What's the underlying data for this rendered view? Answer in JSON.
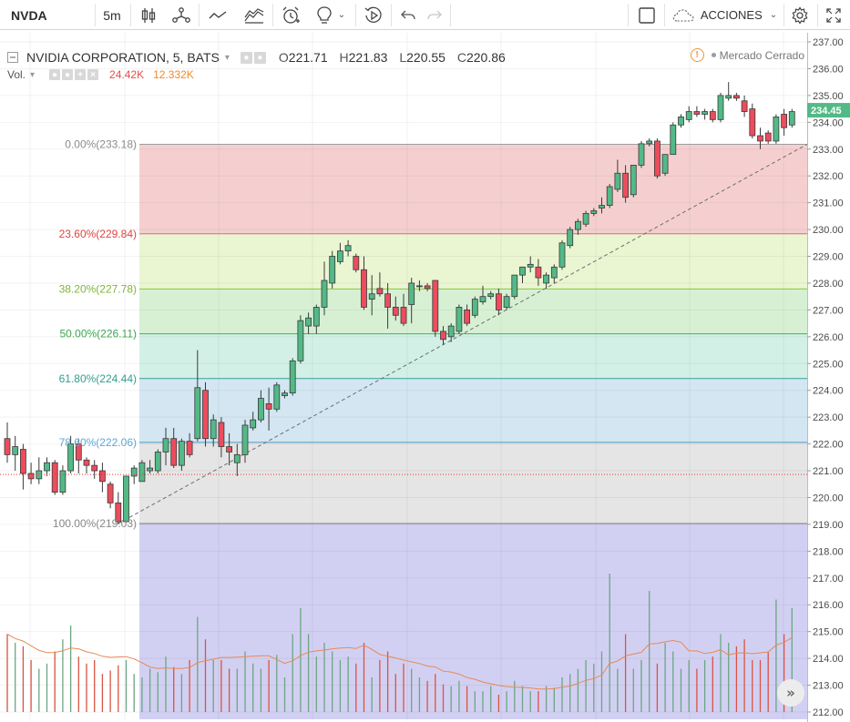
{
  "toolbar": {
    "symbol": "NVDA",
    "interval": "5m",
    "actions_label": "ACCIONES",
    "icons": [
      "bar-style-icon",
      "indicators-icon",
      "compare-icon",
      "templates-icon",
      "alert-icon",
      "ideas-icon",
      "replay-icon",
      "undo-icon",
      "redo-icon",
      "layout-square-icon",
      "cloud-icon",
      "settings-gear-icon",
      "fullscreen-icon"
    ]
  },
  "legend": {
    "title": "NVIDIA CORPORATION, 5, BATS",
    "open_label": "O",
    "open": "221.71",
    "high_label": "H",
    "high": "221.83",
    "low_label": "L",
    "low": "220.55",
    "close_label": "C",
    "close": "220.86"
  },
  "volume_legend": {
    "label": "Vol.",
    "value_a": "24.42K",
    "value_b": "12.332K"
  },
  "market_status": "Mercado Cerrado",
  "colors": {
    "up": "#53b987",
    "down": "#eb4d5c",
    "vol_up": "#6ba583",
    "vol_down": "#d75442",
    "ma": "#e58a57",
    "last_price_bg": "#53b987"
  },
  "chart_data": {
    "type": "candlestick",
    "symbol": "NVDA",
    "interval": "5",
    "price_axis": {
      "min": 212.0,
      "max": 237.0,
      "ticks": [
        "237.00",
        "236.00",
        "235.00",
        "234.00",
        "233.00",
        "232.00",
        "231.00",
        "230.00",
        "229.00",
        "228.00",
        "227.00",
        "226.00",
        "225.00",
        "224.00",
        "223.00",
        "222.00",
        "221.00",
        "220.00",
        "219.00",
        "218.00",
        "217.00",
        "216.00",
        "215.00",
        "214.00",
        "213.00",
        "212.00"
      ]
    },
    "last_price": "234.45",
    "dotted_price_line": 220.86,
    "fibonacci": {
      "from_price": 219.03,
      "to_price": 233.18,
      "levels": [
        {
          "label": "0.00%(233.18)",
          "price": 233.18,
          "line_color": "#9e9e9e",
          "fill": "#f5cfcf",
          "text_color": "#8c8c8c"
        },
        {
          "label": "23.60%(229.84)",
          "price": 229.84,
          "line_color": "#e36a6a",
          "fill": "#eaf5d2",
          "text_color": "#e0453f"
        },
        {
          "label": "38.20%(227.78)",
          "price": 227.78,
          "line_color": "#8cc63f",
          "fill": "#d7f0d4",
          "text_color": "#81b53a"
        },
        {
          "label": "50.00%(226.11)",
          "price": 226.11,
          "line_color": "#3fb55a",
          "fill": "#d2f0e6",
          "text_color": "#3aa84e"
        },
        {
          "label": "61.80%(224.44)",
          "price": 224.44,
          "line_color": "#31a392",
          "fill": "#d3e6f1",
          "text_color": "#2f9e90"
        },
        {
          "label": "78.60%(222.06)",
          "price": 222.06,
          "line_color": "#4a9ac4",
          "fill": "#e5e5e5",
          "text_color": "#5ba7d8"
        },
        {
          "label": "100.00%(219.03)",
          "price": 219.03,
          "line_color": "#808080",
          "fill": "#d2d0f2",
          "text_color": "#888888"
        }
      ]
    },
    "candles": [
      {
        "o": 222.2,
        "h": 222.8,
        "l": 221.3,
        "c": 221.6
      },
      {
        "o": 221.6,
        "h": 222.3,
        "l": 221.0,
        "c": 221.9
      },
      {
        "o": 221.8,
        "h": 222.0,
        "l": 220.3,
        "c": 220.9
      },
      {
        "o": 220.9,
        "h": 221.3,
        "l": 220.5,
        "c": 220.7
      },
      {
        "o": 220.7,
        "h": 221.5,
        "l": 220.5,
        "c": 221.0
      },
      {
        "o": 221.0,
        "h": 221.5,
        "l": 220.8,
        "c": 221.3
      },
      {
        "o": 221.3,
        "h": 221.4,
        "l": 220.1,
        "c": 220.2
      },
      {
        "o": 220.2,
        "h": 221.2,
        "l": 220.1,
        "c": 221.0
      },
      {
        "o": 221.0,
        "h": 222.3,
        "l": 220.9,
        "c": 222.0
      },
      {
        "o": 222.0,
        "h": 222.2,
        "l": 220.9,
        "c": 221.4
      },
      {
        "o": 221.4,
        "h": 221.5,
        "l": 220.9,
        "c": 221.2
      },
      {
        "o": 221.2,
        "h": 221.4,
        "l": 220.7,
        "c": 221.0
      },
      {
        "o": 221.0,
        "h": 221.3,
        "l": 220.2,
        "c": 220.6
      },
      {
        "o": 220.5,
        "h": 220.6,
        "l": 219.6,
        "c": 219.8
      },
      {
        "o": 219.8,
        "h": 220.2,
        "l": 219.0,
        "c": 219.1
      },
      {
        "o": 219.1,
        "h": 220.8,
        "l": 219.1,
        "c": 220.8
      },
      {
        "o": 220.8,
        "h": 221.2,
        "l": 220.5,
        "c": 221.1
      },
      {
        "o": 220.6,
        "h": 221.4,
        "l": 220.6,
        "c": 221.3
      },
      {
        "o": 221.0,
        "h": 221.4,
        "l": 220.9,
        "c": 221.1
      },
      {
        "o": 221.0,
        "h": 221.8,
        "l": 220.9,
        "c": 221.7
      },
      {
        "o": 221.7,
        "h": 222.6,
        "l": 221.2,
        "c": 222.2
      },
      {
        "o": 222.2,
        "h": 222.6,
        "l": 221.1,
        "c": 221.2
      },
      {
        "o": 221.2,
        "h": 222.2,
        "l": 221.0,
        "c": 222.1
      },
      {
        "o": 222.1,
        "h": 222.4,
        "l": 221.5,
        "c": 221.6
      },
      {
        "o": 222.2,
        "h": 225.5,
        "l": 222.1,
        "c": 224.1
      },
      {
        "o": 224.0,
        "h": 224.3,
        "l": 221.9,
        "c": 222.2
      },
      {
        "o": 222.2,
        "h": 223.1,
        "l": 221.9,
        "c": 222.9
      },
      {
        "o": 222.8,
        "h": 223.0,
        "l": 221.5,
        "c": 221.9
      },
      {
        "o": 221.9,
        "h": 222.4,
        "l": 221.2,
        "c": 221.7
      },
      {
        "o": 221.3,
        "h": 222.0,
        "l": 220.8,
        "c": 221.6
      },
      {
        "o": 221.6,
        "h": 222.9,
        "l": 221.3,
        "c": 222.7
      },
      {
        "o": 222.6,
        "h": 223.2,
        "l": 222.5,
        "c": 222.9
      },
      {
        "o": 222.9,
        "h": 224.0,
        "l": 222.8,
        "c": 223.7
      },
      {
        "o": 223.5,
        "h": 224.1,
        "l": 222.5,
        "c": 223.3
      },
      {
        "o": 223.3,
        "h": 224.3,
        "l": 223.2,
        "c": 224.2
      },
      {
        "o": 223.8,
        "h": 224.0,
        "l": 223.7,
        "c": 223.9
      },
      {
        "o": 223.9,
        "h": 225.2,
        "l": 223.8,
        "c": 225.1
      },
      {
        "o": 225.1,
        "h": 226.8,
        "l": 225.0,
        "c": 226.6
      },
      {
        "o": 226.4,
        "h": 226.9,
        "l": 226.1,
        "c": 226.7
      },
      {
        "o": 226.4,
        "h": 227.2,
        "l": 226.1,
        "c": 227.1
      },
      {
        "o": 227.1,
        "h": 228.8,
        "l": 226.8,
        "c": 228.1
      },
      {
        "o": 228.0,
        "h": 229.2,
        "l": 227.8,
        "c": 229.0
      },
      {
        "o": 228.8,
        "h": 229.5,
        "l": 228.7,
        "c": 229.2
      },
      {
        "o": 229.2,
        "h": 229.6,
        "l": 229.0,
        "c": 229.4
      },
      {
        "o": 229.0,
        "h": 229.1,
        "l": 228.4,
        "c": 228.5
      },
      {
        "o": 228.5,
        "h": 229.0,
        "l": 227.0,
        "c": 227.1
      },
      {
        "o": 227.4,
        "h": 228.3,
        "l": 226.8,
        "c": 227.6
      },
      {
        "o": 227.8,
        "h": 228.4,
        "l": 227.5,
        "c": 227.6
      },
      {
        "o": 227.6,
        "h": 228.0,
        "l": 226.3,
        "c": 227.1
      },
      {
        "o": 227.1,
        "h": 227.5,
        "l": 226.6,
        "c": 226.8
      },
      {
        "o": 227.1,
        "h": 227.6,
        "l": 226.4,
        "c": 226.5
      },
      {
        "o": 227.2,
        "h": 228.2,
        "l": 226.5,
        "c": 228.0
      },
      {
        "o": 227.9,
        "h": 228.1,
        "l": 227.7,
        "c": 227.9
      },
      {
        "o": 227.9,
        "h": 228.0,
        "l": 227.7,
        "c": 227.8
      },
      {
        "o": 228.1,
        "h": 228.1,
        "l": 226.0,
        "c": 226.2
      },
      {
        "o": 226.2,
        "h": 226.4,
        "l": 225.7,
        "c": 225.9
      },
      {
        "o": 226.0,
        "h": 226.5,
        "l": 225.8,
        "c": 226.4
      },
      {
        "o": 226.2,
        "h": 227.2,
        "l": 226.1,
        "c": 227.1
      },
      {
        "o": 227.0,
        "h": 227.2,
        "l": 226.4,
        "c": 226.5
      },
      {
        "o": 226.8,
        "h": 227.5,
        "l": 226.7,
        "c": 227.4
      },
      {
        "o": 227.3,
        "h": 227.9,
        "l": 227.2,
        "c": 227.5
      },
      {
        "o": 227.5,
        "h": 227.7,
        "l": 227.4,
        "c": 227.6
      },
      {
        "o": 227.6,
        "h": 227.8,
        "l": 226.8,
        "c": 227.0
      },
      {
        "o": 227.1,
        "h": 227.6,
        "l": 227.0,
        "c": 227.5
      },
      {
        "o": 227.5,
        "h": 228.3,
        "l": 227.4,
        "c": 228.3
      },
      {
        "o": 228.3,
        "h": 228.6,
        "l": 228.0,
        "c": 228.6
      },
      {
        "o": 228.6,
        "h": 229.0,
        "l": 228.4,
        "c": 228.7
      },
      {
        "o": 228.6,
        "h": 228.9,
        "l": 227.9,
        "c": 228.2
      },
      {
        "o": 228.0,
        "h": 228.4,
        "l": 227.8,
        "c": 228.3
      },
      {
        "o": 228.2,
        "h": 228.7,
        "l": 228.0,
        "c": 228.6
      },
      {
        "o": 228.6,
        "h": 229.6,
        "l": 228.5,
        "c": 229.5
      },
      {
        "o": 229.4,
        "h": 230.1,
        "l": 229.3,
        "c": 230.0
      },
      {
        "o": 230.0,
        "h": 230.4,
        "l": 229.8,
        "c": 230.3
      },
      {
        "o": 230.2,
        "h": 230.7,
        "l": 230.1,
        "c": 230.6
      },
      {
        "o": 230.6,
        "h": 230.8,
        "l": 230.5,
        "c": 230.7
      },
      {
        "o": 230.8,
        "h": 231.2,
        "l": 230.6,
        "c": 230.9
      },
      {
        "o": 230.9,
        "h": 231.7,
        "l": 230.8,
        "c": 231.6
      },
      {
        "o": 231.5,
        "h": 232.6,
        "l": 231.4,
        "c": 232.1
      },
      {
        "o": 232.1,
        "h": 232.4,
        "l": 231.0,
        "c": 231.2
      },
      {
        "o": 231.3,
        "h": 232.4,
        "l": 231.2,
        "c": 232.4
      },
      {
        "o": 232.4,
        "h": 233.3,
        "l": 232.3,
        "c": 233.2
      },
      {
        "o": 233.2,
        "h": 233.4,
        "l": 233.1,
        "c": 233.3
      },
      {
        "o": 233.3,
        "h": 233.4,
        "l": 231.9,
        "c": 232.0
      },
      {
        "o": 232.1,
        "h": 232.8,
        "l": 232.0,
        "c": 232.8
      },
      {
        "o": 232.8,
        "h": 234.0,
        "l": 232.8,
        "c": 233.9
      },
      {
        "o": 233.9,
        "h": 234.3,
        "l": 233.8,
        "c": 234.2
      },
      {
        "o": 234.1,
        "h": 234.6,
        "l": 234.0,
        "c": 234.4
      },
      {
        "o": 234.4,
        "h": 234.6,
        "l": 234.2,
        "c": 234.3
      },
      {
        "o": 234.3,
        "h": 234.5,
        "l": 234.1,
        "c": 234.4
      },
      {
        "o": 234.4,
        "h": 234.5,
        "l": 234.0,
        "c": 234.1
      },
      {
        "o": 234.1,
        "h": 235.1,
        "l": 234.0,
        "c": 235.0
      },
      {
        "o": 234.9,
        "h": 235.5,
        "l": 234.8,
        "c": 235.0
      },
      {
        "o": 235.0,
        "h": 235.1,
        "l": 234.8,
        "c": 234.9
      },
      {
        "o": 234.8,
        "h": 235.0,
        "l": 234.2,
        "c": 234.4
      },
      {
        "o": 234.5,
        "h": 234.7,
        "l": 233.4,
        "c": 233.5
      },
      {
        "o": 233.5,
        "h": 233.8,
        "l": 233.0,
        "c": 233.3
      },
      {
        "o": 233.6,
        "h": 233.7,
        "l": 233.2,
        "c": 233.3
      },
      {
        "o": 233.3,
        "h": 234.3,
        "l": 233.2,
        "c": 234.2
      },
      {
        "o": 234.3,
        "h": 234.5,
        "l": 233.5,
        "c": 233.8
      },
      {
        "o": 233.9,
        "h": 234.5,
        "l": 233.8,
        "c": 234.4
      }
    ],
    "volume_relative": [
      0.45,
      0.4,
      0.38,
      0.3,
      0.25,
      0.28,
      0.35,
      0.42,
      0.5,
      0.32,
      0.28,
      0.3,
      0.22,
      0.24,
      0.27,
      0.3,
      0.22,
      0.2,
      0.25,
      0.23,
      0.32,
      0.26,
      0.22,
      0.3,
      0.55,
      0.42,
      0.3,
      0.3,
      0.25,
      0.25,
      0.35,
      0.28,
      0.25,
      0.3,
      0.33,
      0.2,
      0.45,
      0.6,
      0.45,
      0.32,
      0.4,
      0.35,
      0.3,
      0.32,
      0.28,
      0.4,
      0.2,
      0.3,
      0.35,
      0.22,
      0.28,
      0.25,
      0.2,
      0.18,
      0.22,
      0.16,
      0.15,
      0.18,
      0.15,
      0.12,
      0.12,
      0.15,
      0.1,
      0.12,
      0.18,
      0.15,
      0.12,
      0.12,
      0.15,
      0.14,
      0.2,
      0.22,
      0.25,
      0.3,
      0.28,
      0.35,
      0.8,
      0.25,
      0.45,
      0.25,
      0.3,
      0.7,
      0.28,
      0.4,
      0.35,
      0.25,
      0.3,
      0.25,
      0.3,
      0.32,
      0.45,
      0.4,
      0.38,
      0.42,
      0.3,
      0.3,
      0.35,
      0.65,
      0.45,
      0.6
    ]
  }
}
